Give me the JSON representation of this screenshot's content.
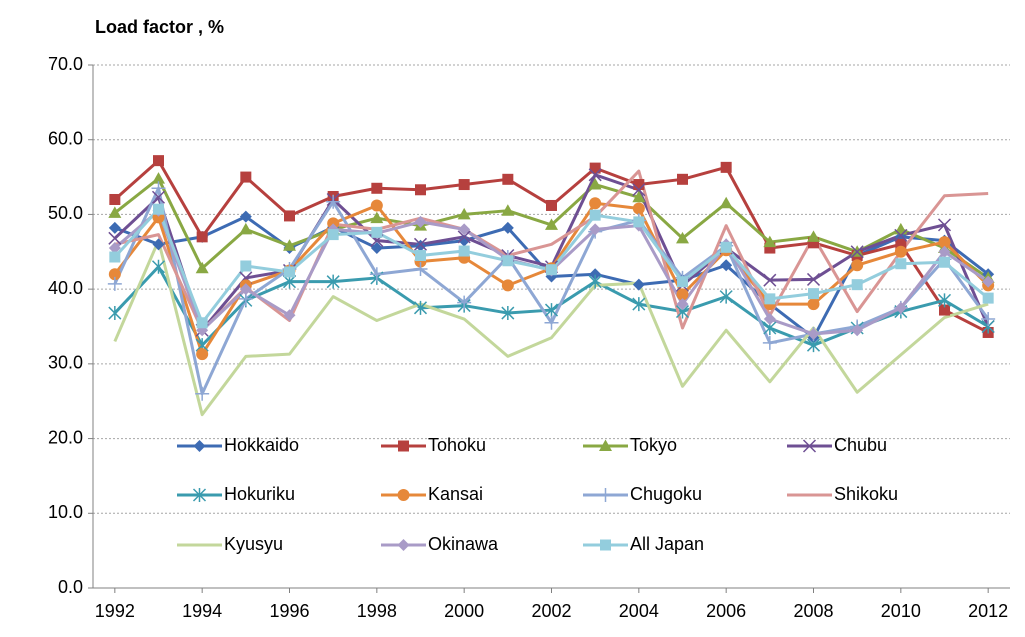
{
  "chart_data": {
    "type": "line",
    "y_label": "Load factor , %",
    "x": [
      1992,
      1993,
      1994,
      1995,
      1996,
      1997,
      1998,
      1999,
      2000,
      2001,
      2002,
      2003,
      2004,
      2005,
      2006,
      2007,
      2008,
      2009,
      2010,
      2011,
      2012
    ],
    "xlim": [
      1991.5,
      2012.5
    ],
    "xticks": [
      1992,
      1994,
      1996,
      1998,
      2000,
      2002,
      2004,
      2006,
      2008,
      2010,
      2012
    ],
    "ylim": [
      0,
      70
    ],
    "yticks": [
      {
        "value": 0,
        "label": "0.0"
      },
      {
        "value": 10,
        "label": "10.0"
      },
      {
        "value": 20,
        "label": "20.0"
      },
      {
        "value": 30,
        "label": "30.0"
      },
      {
        "value": 40,
        "label": "40.0"
      },
      {
        "value": 50,
        "label": "50.0"
      },
      {
        "value": 60,
        "label": "60.0"
      },
      {
        "value": 70,
        "label": "70.0"
      }
    ],
    "grid": true,
    "legend": "inside-bottom",
    "series": [
      {
        "name": "Hokkaido",
        "color": "#3d6bb3",
        "marker": "diamond",
        "values": [
          48.2,
          46,
          47,
          49.7,
          45.5,
          48.3,
          45.5,
          45.8,
          46.5,
          48.2,
          41.7,
          42,
          40.6,
          41.2,
          43.2,
          38,
          33.5,
          44.5,
          47,
          46.5,
          42
        ]
      },
      {
        "name": "Tohoku",
        "color": "#b6403e",
        "marker": "square",
        "values": [
          52,
          57.2,
          47,
          55,
          49.8,
          52.4,
          53.5,
          53.3,
          54,
          54.7,
          51.2,
          56.2,
          54,
          54.7,
          56.3,
          45.5,
          46.2,
          44.5,
          46,
          37.2,
          34.2
        ]
      },
      {
        "name": "Tokyo",
        "color": "#89a843",
        "marker": "triangle",
        "values": [
          50.2,
          54.8,
          42.8,
          48,
          45.8,
          48,
          49.5,
          48.5,
          50,
          50.5,
          48.6,
          54,
          52.3,
          46.8,
          51.5,
          46.3,
          47,
          45,
          48,
          45.5,
          41.5
        ]
      },
      {
        "name": "Chubu",
        "color": "#6e4f93",
        "marker": "x",
        "values": [
          46.8,
          52.3,
          34.5,
          41.5,
          42.5,
          52,
          46.5,
          46,
          47,
          44.5,
          43,
          55.3,
          53.3,
          40.5,
          45.5,
          41.2,
          41.3,
          45,
          47.2,
          48.6,
          35
        ]
      },
      {
        "name": "Hokuriku",
        "color": "#3a9bae",
        "marker": "asterisk",
        "values": [
          36.8,
          43,
          32.5,
          38.5,
          41,
          41,
          41.5,
          37.5,
          37.8,
          36.8,
          37.2,
          41,
          38,
          37,
          39,
          34.8,
          32.5,
          34.8,
          37,
          38.5,
          35
        ]
      },
      {
        "name": "Kansai",
        "color": "#e6883a",
        "marker": "circle",
        "values": [
          42,
          49.6,
          31.3,
          40.5,
          42.5,
          48.8,
          51.2,
          43.7,
          44.2,
          40.5,
          42.8,
          51.5,
          50.8,
          39.3,
          45.2,
          38,
          38,
          43.2,
          45,
          46.3,
          40.5
        ]
      },
      {
        "name": "Chugoku",
        "color": "#8ea7d4",
        "marker": "plus",
        "values": [
          40.7,
          53.5,
          26,
          38.7,
          42.7,
          51.7,
          42,
          42.7,
          38.2,
          44.3,
          35.5,
          47.7,
          49.2,
          41.5,
          45.8,
          32.8,
          34,
          35,
          37.5,
          44,
          36
        ]
      },
      {
        "name": "Shikoku",
        "color": "#d99594",
        "marker": "none",
        "values": [
          46,
          47.3,
          34.5,
          40.2,
          35.8,
          48.7,
          48,
          49.5,
          48,
          44.5,
          46,
          49.7,
          55.8,
          34.8,
          48.5,
          36.5,
          47,
          37,
          45,
          52.5,
          52.8
        ]
      },
      {
        "name": "Kyusyu",
        "color": "#c3d79b",
        "marker": "none",
        "values": [
          33,
          46.5,
          23.2,
          31,
          31.3,
          39,
          35.8,
          38,
          36,
          31,
          33.5,
          40.5,
          40.8,
          27,
          34.5,
          27.6,
          34.8,
          26.2,
          31.2,
          36.2,
          38
        ]
      },
      {
        "name": "Okinawa",
        "color": "#a99bc7",
        "marker": "diamond",
        "values": [
          45.5,
          50.5,
          34.5,
          40,
          36.5,
          48,
          47.5,
          49,
          48,
          44,
          42.5,
          48,
          48.5,
          38,
          46,
          36,
          34,
          34.5,
          37.5,
          45,
          41
        ]
      },
      {
        "name": "All Japan",
        "color": "#93cddd",
        "marker": "square",
        "values": [
          44.3,
          50.7,
          35.5,
          43.1,
          42.3,
          47.3,
          47.6,
          44.5,
          45.1,
          43.8,
          42.6,
          49.9,
          49,
          41,
          45.6,
          38.7,
          39.4,
          40.6,
          43.4,
          43.6,
          38.8
        ]
      }
    ]
  }
}
